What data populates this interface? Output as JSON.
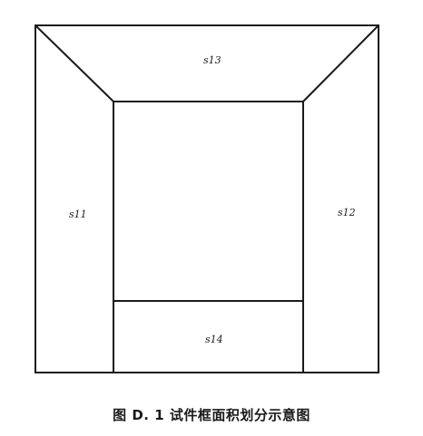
{
  "diagram": {
    "regions": [
      {
        "id": "s13",
        "label": "s13"
      },
      {
        "id": "s11",
        "label": "s11"
      },
      {
        "id": "s12",
        "label": "s12"
      },
      {
        "id": "s14",
        "label": "s14"
      }
    ]
  },
  "caption": "图 D. 1 试件框面积划分示意图"
}
